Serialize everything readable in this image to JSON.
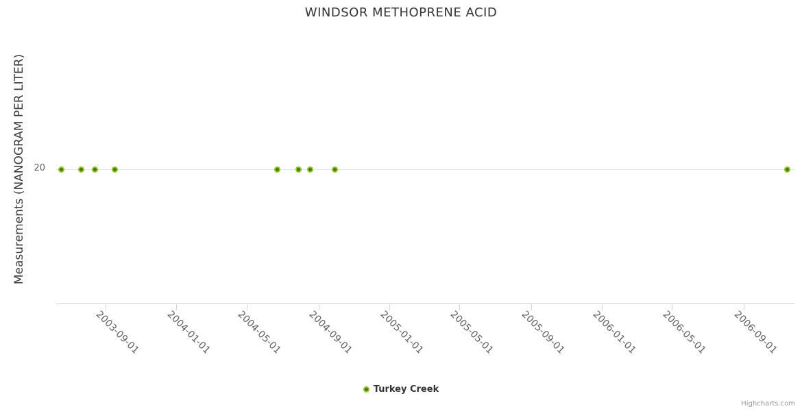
{
  "chart": {
    "credits": "Highcharts.com"
  },
  "chart_data": {
    "type": "scatter",
    "title": "WINDSOR METHOPRENE ACID",
    "xlabel": "",
    "ylabel": "Measurements (NANOGRAM PER LITER)",
    "legend_position": "bottom-center",
    "grid": "single horizontal gridline at y tick 20; light blue-gray x axis line with downward ticks",
    "x_ticks": [
      "2003-09-01",
      "2004-01-01",
      "2004-05-01",
      "2004-09-01",
      "2005-01-01",
      "2005-05-01",
      "2005-09-01",
      "2006-01-01",
      "2006-05-01",
      "2006-09-01"
    ],
    "x_tick_rotation_deg": 45,
    "y_ticks": [
      20
    ],
    "x_range": [
      "2003-06-08",
      "2006-11-28"
    ],
    "ylim": [
      10,
      30.6
    ],
    "colors": {
      "marker_fill": "#4c7a0a",
      "marker_border": "#8fc428",
      "axis_line": "#ccd6eb",
      "gridline": "#e6e6e6",
      "title_text": "#333333",
      "tick_text": "#606060",
      "credits_text": "#999999"
    },
    "series": [
      {
        "name": "Turkey Creek",
        "marker_fill": "#4c7a0a",
        "marker_border": "#8fc428",
        "points": [
          {
            "x": "2003-06-17",
            "y": 20
          },
          {
            "x": "2003-07-21",
            "y": 20
          },
          {
            "x": "2003-08-13",
            "y": 20
          },
          {
            "x": "2003-09-17",
            "y": 20
          },
          {
            "x": "2004-06-22",
            "y": 20
          },
          {
            "x": "2004-07-28",
            "y": 20
          },
          {
            "x": "2004-08-17",
            "y": 20
          },
          {
            "x": "2004-09-29",
            "y": 20
          },
          {
            "x": "2006-11-14",
            "y": 20
          }
        ]
      }
    ]
  }
}
